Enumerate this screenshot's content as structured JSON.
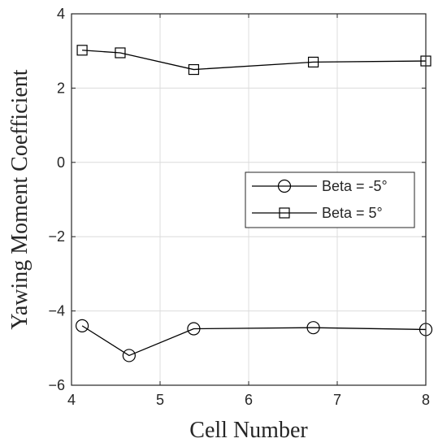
{
  "chart_data": {
    "type": "line",
    "xlabel": "Cell Number",
    "ylabel": "Yawing Moment Coefficient",
    "xlim": [
      4,
      8
    ],
    "ylim": [
      -6,
      4
    ],
    "xticks": [
      4,
      5,
      6,
      7,
      8
    ],
    "yticks": [
      -6,
      -4,
      -2,
      0,
      2,
      4
    ],
    "xtick_labels": [
      "4",
      "5",
      "6",
      "7",
      "8"
    ],
    "ytick_labels": [
      "−6",
      "−4",
      "−2",
      "0",
      "2",
      "4"
    ],
    "grid": true,
    "legend_position": "center-right",
    "series": [
      {
        "name": "Beta = -5°",
        "marker": "circle",
        "color": "#000000",
        "x": [
          4.12,
          4.65,
          5.38,
          6.73,
          8.0
        ],
        "y": [
          -4.4,
          -5.2,
          -4.48,
          -4.45,
          -4.5
        ]
      },
      {
        "name": "Beta = 5°",
        "marker": "square",
        "color": "#000000",
        "x": [
          4.12,
          4.55,
          5.38,
          6.73,
          8.0
        ],
        "y": [
          3.02,
          2.95,
          2.5,
          2.7,
          2.73
        ]
      }
    ]
  }
}
